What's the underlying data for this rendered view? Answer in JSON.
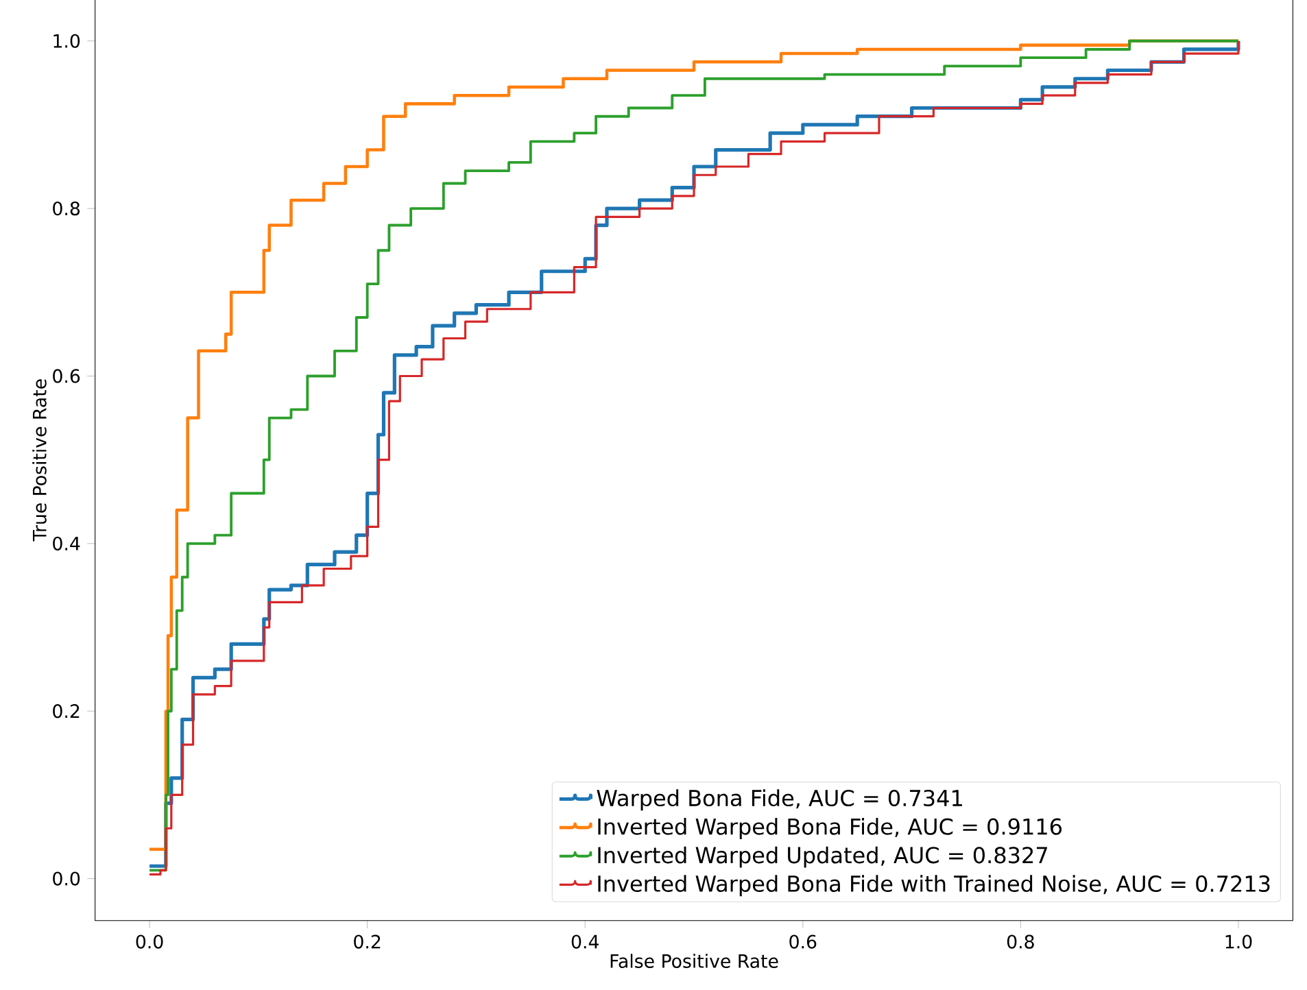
{
  "chart_data": {
    "type": "step",
    "xlabel": "False Positive Rate",
    "ylabel": "True Positive Rate",
    "xlim": [
      -0.05,
      1.05
    ],
    "ylim": [
      -0.05,
      1.05
    ],
    "xticks": [
      {
        "value": 0,
        "label": "0.0"
      },
      {
        "value": 0.2,
        "label": "0.2"
      },
      {
        "value": 0.4,
        "label": "0.4"
      },
      {
        "value": 0.6,
        "label": "0.6"
      },
      {
        "value": 0.8,
        "label": "0.8"
      },
      {
        "value": 1,
        "label": "1.0"
      }
    ],
    "yticks": [
      {
        "value": 0,
        "label": "0.0"
      },
      {
        "value": 0.2,
        "label": "0.2"
      },
      {
        "value": 0.4,
        "label": "0.4"
      },
      {
        "value": 0.6,
        "label": "0.6"
      },
      {
        "value": 0.8,
        "label": "0.8"
      },
      {
        "value": 1,
        "label": "1.0"
      }
    ],
    "legend": "bottom right",
    "series": [
      {
        "name": "Warped Bona Fide, AUC = 0.7341",
        "color": "#1f77b4",
        "x": [
          0,
          0.015,
          0.02,
          0.03,
          0.04,
          0.06,
          0.075,
          0.105,
          0.11,
          0.13,
          0.145,
          0.17,
          0.19,
          0.2,
          0.21,
          0.215,
          0.225,
          0.245,
          0.26,
          0.28,
          0.3,
          0.33,
          0.36,
          0.4,
          0.41,
          0.42,
          0.45,
          0.48,
          0.5,
          0.52,
          0.57,
          0.6,
          0.65,
          0.7,
          0.8,
          0.82,
          0.85,
          0.88,
          0.92,
          0.95,
          1.0
        ],
        "values": [
          0.015,
          0.09,
          0.12,
          0.19,
          0.24,
          0.25,
          0.28,
          0.31,
          0.345,
          0.35,
          0.375,
          0.39,
          0.41,
          0.46,
          0.53,
          0.58,
          0.625,
          0.635,
          0.66,
          0.675,
          0.685,
          0.7,
          0.725,
          0.74,
          0.78,
          0.8,
          0.81,
          0.825,
          0.85,
          0.87,
          0.89,
          0.9,
          0.91,
          0.92,
          0.93,
          0.945,
          0.955,
          0.965,
          0.975,
          0.99,
          1.0
        ]
      },
      {
        "name": "Inverted Warped Bona Fide, AUC = 0.9116",
        "color": "#ff7f0e",
        "x": [
          0,
          0.015,
          0.017,
          0.02,
          0.025,
          0.035,
          0.045,
          0.07,
          0.075,
          0.105,
          0.11,
          0.13,
          0.16,
          0.18,
          0.2,
          0.215,
          0.235,
          0.28,
          0.33,
          0.38,
          0.42,
          0.5,
          0.58,
          0.65,
          0.8,
          0.9,
          1.0
        ],
        "values": [
          0.035,
          0.2,
          0.29,
          0.36,
          0.44,
          0.55,
          0.63,
          0.65,
          0.7,
          0.75,
          0.78,
          0.81,
          0.83,
          0.85,
          0.87,
          0.91,
          0.925,
          0.935,
          0.945,
          0.955,
          0.965,
          0.975,
          0.985,
          0.99,
          0.995,
          1.0,
          1.0
        ]
      },
      {
        "name": "Inverted Warped Updated, AUC = 0.8327",
        "color": "#2ca02c",
        "x": [
          0,
          0.015,
          0.017,
          0.02,
          0.025,
          0.03,
          0.035,
          0.06,
          0.075,
          0.105,
          0.11,
          0.13,
          0.145,
          0.17,
          0.19,
          0.2,
          0.21,
          0.22,
          0.24,
          0.27,
          0.29,
          0.33,
          0.35,
          0.39,
          0.41,
          0.44,
          0.48,
          0.51,
          0.62,
          0.73,
          0.8,
          0.86,
          0.9,
          1.0
        ],
        "values": [
          0.01,
          0.1,
          0.2,
          0.25,
          0.32,
          0.36,
          0.4,
          0.41,
          0.46,
          0.5,
          0.55,
          0.56,
          0.6,
          0.63,
          0.67,
          0.71,
          0.75,
          0.78,
          0.8,
          0.83,
          0.845,
          0.855,
          0.88,
          0.89,
          0.91,
          0.92,
          0.935,
          0.955,
          0.96,
          0.97,
          0.98,
          0.99,
          1.0,
          1.0
        ]
      },
      {
        "name": "Inverted Warped Bona Fide with Trained Noise, AUC = 0.7213",
        "color": "#d62728",
        "x": [
          0,
          0.01,
          0.015,
          0.02,
          0.03,
          0.04,
          0.06,
          0.075,
          0.105,
          0.11,
          0.14,
          0.16,
          0.185,
          0.2,
          0.21,
          0.22,
          0.23,
          0.25,
          0.27,
          0.29,
          0.31,
          0.35,
          0.39,
          0.41,
          0.45,
          0.48,
          0.5,
          0.52,
          0.55,
          0.58,
          0.62,
          0.67,
          0.72,
          0.8,
          0.82,
          0.85,
          0.88,
          0.92,
          0.95,
          1.0
        ],
        "values": [
          0.005,
          0.01,
          0.06,
          0.1,
          0.16,
          0.22,
          0.23,
          0.26,
          0.3,
          0.33,
          0.35,
          0.37,
          0.385,
          0.42,
          0.5,
          0.57,
          0.6,
          0.62,
          0.645,
          0.665,
          0.68,
          0.7,
          0.73,
          0.79,
          0.8,
          0.815,
          0.84,
          0.85,
          0.865,
          0.88,
          0.89,
          0.91,
          0.92,
          0.925,
          0.935,
          0.95,
          0.96,
          0.975,
          0.985,
          1.0
        ]
      }
    ]
  }
}
